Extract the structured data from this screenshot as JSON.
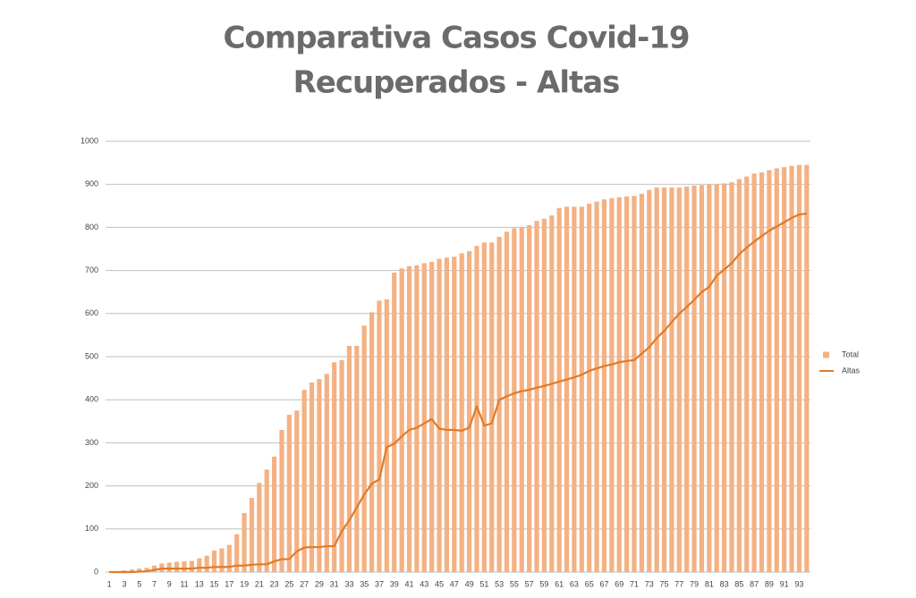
{
  "chart_data": {
    "type": "bar",
    "title": [
      "Comparativa Casos Covid-19",
      "Recuperados - Altas"
    ],
    "categories": [
      "1",
      null,
      "3",
      null,
      "5",
      null,
      "7",
      null,
      "9",
      null,
      "11",
      null,
      "13",
      null,
      "15",
      null,
      "17",
      null,
      "19",
      null,
      "21",
      null,
      "23",
      null,
      "25",
      null,
      "27",
      null,
      "29",
      null,
      "31",
      null,
      "33",
      null,
      "35",
      null,
      "37",
      null,
      "39",
      null,
      "41",
      null,
      "43",
      null,
      "45",
      null,
      "47",
      null,
      "49",
      null,
      "51",
      null,
      "53",
      null,
      "55",
      null,
      "57",
      null,
      "59",
      null,
      "61",
      null,
      "63",
      null,
      "65",
      null,
      "67",
      null,
      "69",
      null,
      "71",
      null,
      "73",
      null,
      "75",
      null,
      "77",
      null,
      "79",
      null,
      "81",
      null,
      "83",
      null,
      "85",
      null,
      "87",
      null,
      "89",
      null,
      "91",
      null,
      "93",
      null
    ],
    "series": [
      {
        "name": "Total",
        "type": "bar",
        "color": "#f4b183",
        "values": [
          1,
          2,
          4,
          6,
          8,
          10,
          15,
          20,
          22,
          24,
          25,
          26,
          32,
          38,
          50,
          55,
          63,
          88,
          137,
          172,
          207,
          238,
          268,
          330,
          365,
          375,
          423,
          440,
          448,
          460,
          487,
          492,
          525,
          525,
          572,
          603,
          630,
          633,
          695,
          705,
          710,
          712,
          717,
          720,
          727,
          730,
          732,
          740,
          745,
          757,
          765,
          765,
          778,
          790,
          798,
          800,
          805,
          815,
          820,
          828,
          845,
          848,
          848,
          848,
          855,
          860,
          865,
          868,
          870,
          872,
          873,
          878,
          887,
          893,
          893,
          893,
          893,
          895,
          897,
          898,
          900,
          900,
          902,
          905,
          912,
          918,
          925,
          928,
          933,
          937,
          940,
          943,
          945,
          945
        ]
      },
      {
        "name": "Altas",
        "type": "line",
        "color": "#e07b28",
        "values": [
          0,
          0,
          0,
          0,
          1,
          2,
          5,
          8,
          8,
          8,
          8,
          8,
          10,
          10,
          12,
          12,
          12,
          15,
          15,
          17,
          18,
          18,
          25,
          30,
          30,
          48,
          57,
          58,
          58,
          60,
          60,
          95,
          120,
          150,
          180,
          205,
          215,
          290,
          298,
          315,
          330,
          335,
          345,
          355,
          333,
          330,
          330,
          328,
          335,
          385,
          340,
          345,
          400,
          408,
          415,
          420,
          423,
          428,
          432,
          437,
          442,
          447,
          452,
          458,
          467,
          473,
          478,
          482,
          487,
          490,
          492,
          507,
          522,
          543,
          560,
          580,
          600,
          615,
          632,
          650,
          662,
          688,
          702,
          717,
          738,
          753,
          767,
          780,
          792,
          802,
          812,
          822,
          830,
          832
        ]
      }
    ],
    "ylim": [
      0,
      1000
    ],
    "yticks": [
      0,
      100,
      200,
      300,
      400,
      500,
      600,
      700,
      800,
      900,
      1000
    ],
    "grid": true,
    "legend": "right"
  }
}
